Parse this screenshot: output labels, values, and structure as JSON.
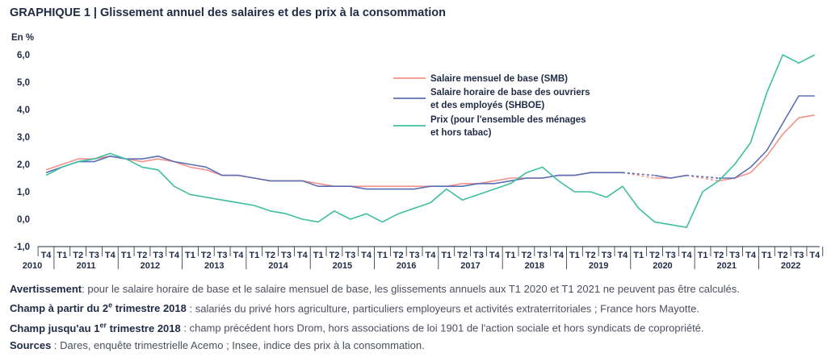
{
  "header": {
    "title_prefix": "GRAPHIQUE 1 |",
    "title_text": "Glissement annuel des salaires et des prix à la consommation"
  },
  "chart_data": {
    "type": "line",
    "ylabel": "En %",
    "ylim": [
      -1.0,
      6.0
    ],
    "yticks": [
      "6,0",
      "5,0",
      "4,0",
      "3,0",
      "2,0",
      "1,0",
      "0,0",
      "-1,0"
    ],
    "ytick_values": [
      6,
      5,
      4,
      3,
      2,
      1,
      0,
      -1
    ],
    "quarters": [
      "T4",
      "T1",
      "T2",
      "T3",
      "T4",
      "T1",
      "T2",
      "T3",
      "T4",
      "T1",
      "T2",
      "T3",
      "T4",
      "T1",
      "T2",
      "T3",
      "T4",
      "T1",
      "T2",
      "T3",
      "T4",
      "T1",
      "T2",
      "T3",
      "T4",
      "T1",
      "T2",
      "T3",
      "T4",
      "T1",
      "T2",
      "T3",
      "T4",
      "T1",
      "T2",
      "T3",
      "T4",
      "T1",
      "T2",
      "T3",
      "T4",
      "T1",
      "T2",
      "T3",
      "T4",
      "T1",
      "T2",
      "T3",
      "T4"
    ],
    "years": [
      {
        "label": "2010",
        "index": 0
      },
      {
        "label": "2011",
        "index": 2.5
      },
      {
        "label": "2012",
        "index": 6.5
      },
      {
        "label": "2013",
        "index": 10.5
      },
      {
        "label": "2014",
        "index": 14.5
      },
      {
        "label": "2015",
        "index": 18.5
      },
      {
        "label": "2016",
        "index": 22.5
      },
      {
        "label": "2017",
        "index": 26.5
      },
      {
        "label": "2018",
        "index": 30.5
      },
      {
        "label": "2019",
        "index": 34.5
      },
      {
        "label": "2020",
        "index": 38.5
      },
      {
        "label": "2021",
        "index": 42.5
      },
      {
        "label": "2022",
        "index": 46.5
      }
    ],
    "grid": false,
    "legend_position": "top-right",
    "gap_note": "Dashed segments for SMB and SHBOE between 2019 T4 and 2020 T2 (T1 2020 not computable)",
    "series": [
      {
        "name": "Salaire mensuel de base (SMB)",
        "color": "#f4928a",
        "values": [
          1.8,
          2.0,
          2.2,
          2.2,
          2.3,
          2.2,
          2.1,
          2.2,
          2.1,
          1.9,
          1.8,
          1.6,
          1.6,
          1.5,
          1.4,
          1.4,
          1.4,
          1.3,
          1.2,
          1.2,
          1.2,
          1.2,
          1.2,
          1.2,
          1.2,
          1.2,
          1.3,
          1.3,
          1.4,
          1.5,
          1.5,
          1.5,
          1.6,
          1.6,
          1.7,
          1.7,
          1.7,
          null,
          1.5,
          1.5,
          1.6,
          null,
          1.4,
          1.5,
          1.7,
          2.3,
          3.1,
          3.7,
          3.8
        ],
        "dashed_segments": [
          [
            36,
            38
          ],
          [
            40,
            42
          ]
        ]
      },
      {
        "name": "Salaire horaire de base des ouvriers et des employés (SHBOE)",
        "color": "#5b6fb5",
        "values": [
          1.7,
          1.9,
          2.1,
          2.1,
          2.3,
          2.2,
          2.2,
          2.3,
          2.1,
          2.0,
          1.9,
          1.6,
          1.6,
          1.5,
          1.4,
          1.4,
          1.4,
          1.2,
          1.2,
          1.2,
          1.1,
          1.1,
          1.1,
          1.1,
          1.2,
          1.2,
          1.2,
          1.3,
          1.3,
          1.4,
          1.5,
          1.5,
          1.6,
          1.6,
          1.7,
          1.7,
          1.7,
          null,
          1.6,
          1.5,
          1.6,
          null,
          1.5,
          1.5,
          1.9,
          2.5,
          3.5,
          4.5,
          4.5
        ],
        "dashed_segments": [
          [
            36,
            38
          ],
          [
            40,
            42
          ]
        ]
      },
      {
        "name": "Prix (pour l'ensemble des ménages et hors tabac)",
        "color": "#3dbf9f",
        "values": [
          1.6,
          1.9,
          2.1,
          2.2,
          2.4,
          2.2,
          1.9,
          1.8,
          1.2,
          0.9,
          0.8,
          0.7,
          0.6,
          0.5,
          0.3,
          0.2,
          0.0,
          -0.1,
          0.3,
          0.0,
          0.2,
          -0.1,
          0.2,
          0.4,
          0.6,
          1.1,
          0.7,
          0.9,
          1.1,
          1.3,
          1.7,
          1.9,
          1.4,
          1.0,
          1.0,
          0.8,
          1.2,
          0.4,
          -0.1,
          -0.2,
          -0.3,
          1.0,
          1.4,
          2.0,
          2.8,
          4.6,
          6.0,
          5.7,
          6.0
        ]
      }
    ],
    "legend": [
      {
        "lines": [
          "Salaire mensuel de base (SMB)"
        ],
        "color": "#f4928a"
      },
      {
        "lines": [
          "Salaire horaire de base des ouvriers",
          "et des employés (SHBOE)"
        ],
        "color": "#5b6fb5"
      },
      {
        "lines": [
          "Prix (pour l'ensemble des ménages",
          "et hors tabac)"
        ],
        "color": "#3dbf9f"
      }
    ]
  },
  "notes": {
    "line1": {
      "label": "Avertissement",
      "text": ": pour le salaire horaire de base et le salaire mensuel de base, les glissements annuels aux T1 2020 et T1 2021 ne peuvent pas être calculés."
    },
    "line2": {
      "label_a": "Champ à partir du 2",
      "label_sup": "e",
      "label_b": " trimestre 2018",
      "text": " : salariés du privé hors agriculture, particuliers employeurs et activités extraterritoriales ; France hors Mayotte."
    },
    "line3": {
      "label_a": "Champ jusqu'au 1",
      "label_sup": "er",
      "label_b": " trimestre 2018",
      "text": " : champ précédent hors Drom, hors associations de loi 1901 de l'action sociale et hors syndicats de copropriété."
    },
    "line4": {
      "label": "Sources",
      "text": " : Dares, enquête trimestrielle Acemo ; Insee, indice des prix à la consommation."
    }
  }
}
